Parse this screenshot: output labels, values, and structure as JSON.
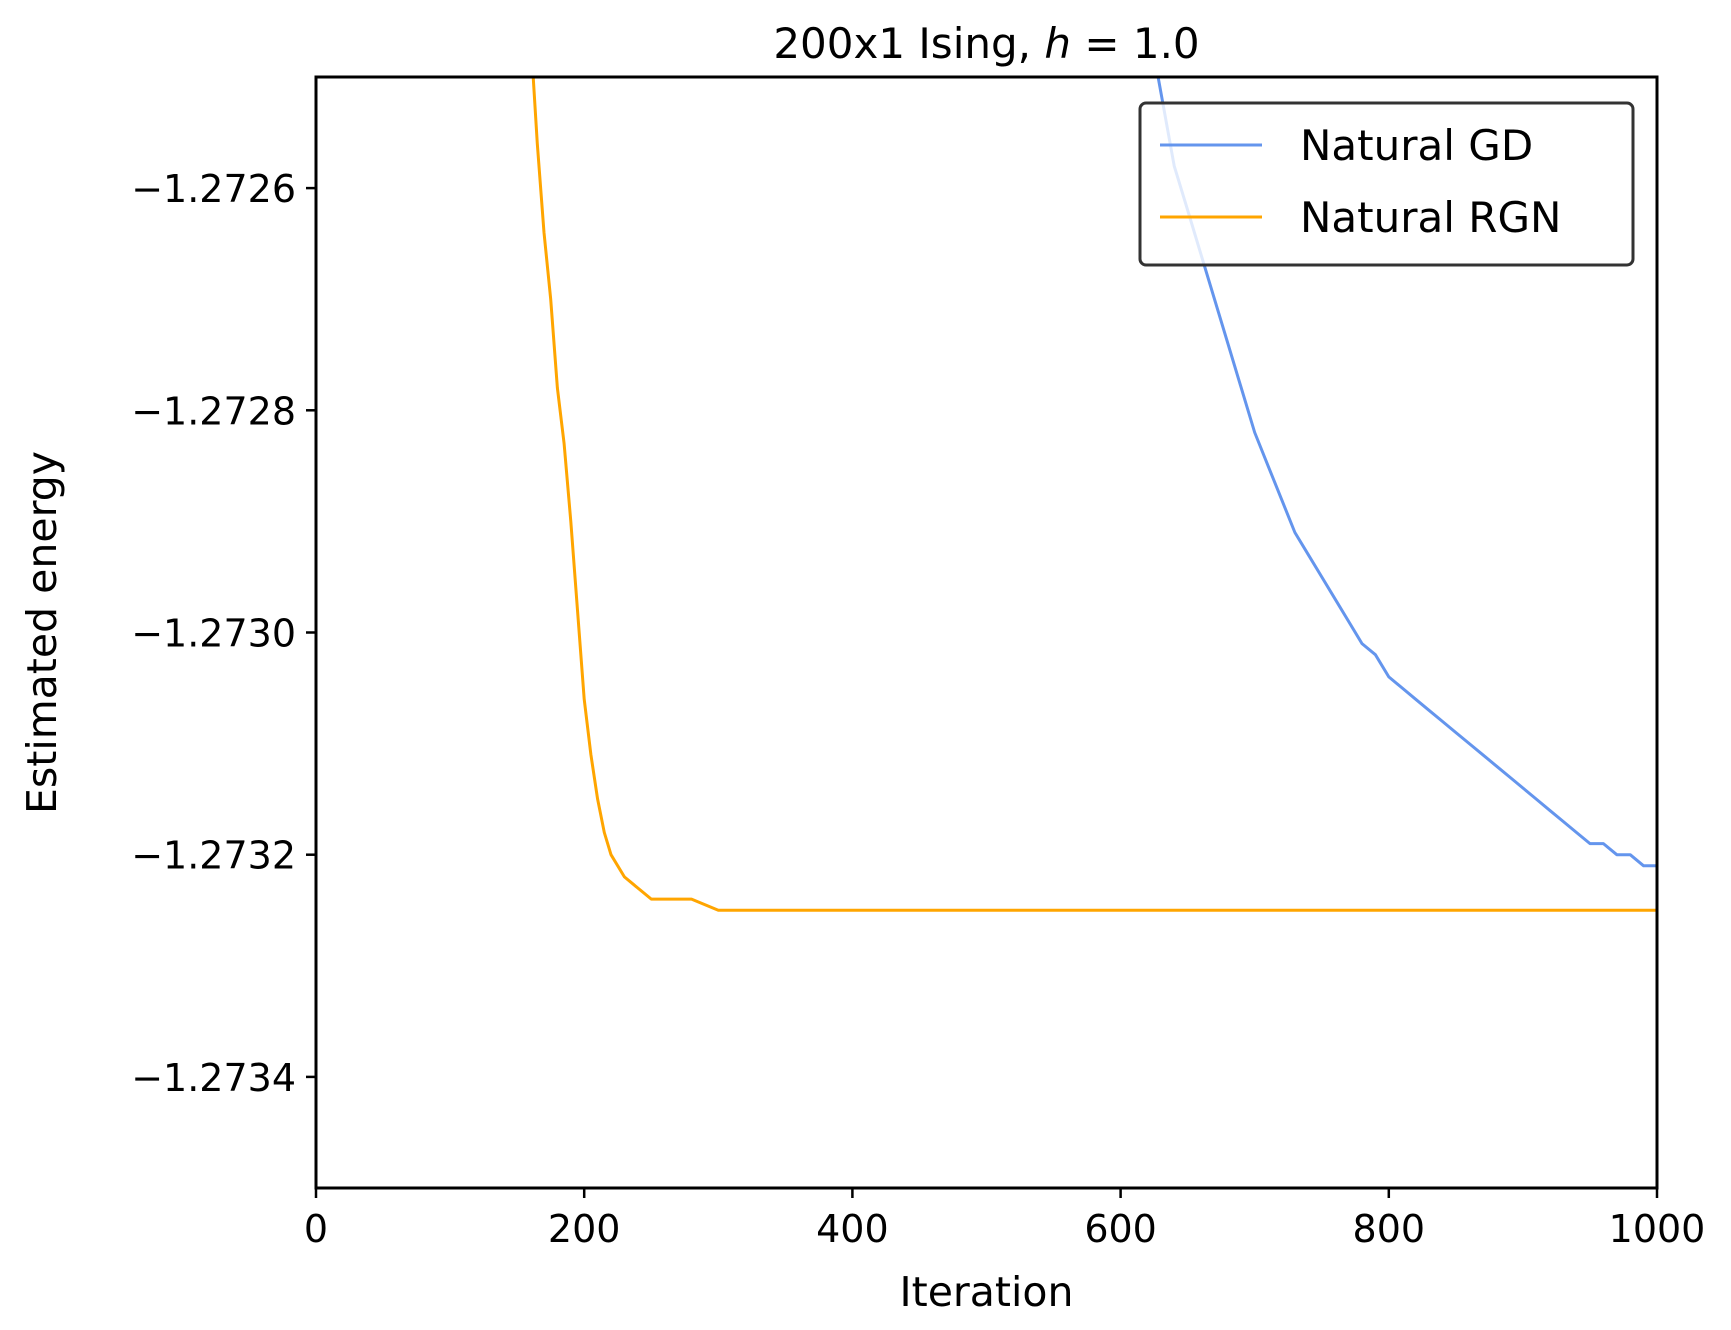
{
  "chart_data": {
    "type": "line",
    "title": "200x1 Ising, h = 1.0",
    "title_parts": {
      "prefix": "200x1 Ising, ",
      "var": "h",
      "eq": " = 1.0"
    },
    "xlabel": "Iteration",
    "ylabel": "Estimated energy",
    "xlim": [
      0,
      1000
    ],
    "ylim": [
      -1.2735,
      -1.2725
    ],
    "xticks": [
      0,
      200,
      400,
      600,
      800,
      1000
    ],
    "xtick_labels": [
      "0",
      "200",
      "400",
      "600",
      "800",
      "1000"
    ],
    "yticks": [
      -1.2726,
      -1.2728,
      -1.273,
      -1.2732,
      -1.2734
    ],
    "ytick_labels": [
      "−1.2726",
      "−1.2728",
      "−1.2730",
      "−1.2732",
      "−1.2734"
    ],
    "grid": false,
    "legend_position": "top-right",
    "series": [
      {
        "name": "Natural GD",
        "color": "#6495ED",
        "x": [
          628,
          640,
          650,
          660,
          670,
          680,
          690,
          700,
          710,
          720,
          730,
          740,
          750,
          760,
          770,
          780,
          790,
          800,
          810,
          820,
          830,
          840,
          850,
          860,
          870,
          880,
          890,
          900,
          910,
          920,
          930,
          940,
          950,
          960,
          970,
          980,
          990,
          1000
        ],
        "y": [
          -1.2725,
          -1.27258,
          -1.27262,
          -1.27266,
          -1.2727,
          -1.27274,
          -1.27278,
          -1.27282,
          -1.27285,
          -1.27288,
          -1.27291,
          -1.27293,
          -1.27295,
          -1.27297,
          -1.27299,
          -1.27301,
          -1.27302,
          -1.27304,
          -1.27305,
          -1.27306,
          -1.27307,
          -1.27308,
          -1.27309,
          -1.2731,
          -1.27311,
          -1.27312,
          -1.27313,
          -1.27314,
          -1.27315,
          -1.27316,
          -1.27317,
          -1.27318,
          -1.27319,
          -1.27319,
          -1.2732,
          -1.2732,
          -1.27321,
          -1.27321
        ]
      },
      {
        "name": "Natural RGN",
        "color": "#FFA500",
        "x": [
          162,
          165,
          170,
          175,
          180,
          185,
          190,
          195,
          200,
          205,
          210,
          215,
          220,
          230,
          240,
          250,
          260,
          280,
          300,
          350,
          400,
          450,
          500,
          550,
          600,
          650,
          700,
          750,
          800,
          850,
          900,
          950,
          1000
        ],
        "y": [
          -1.2725,
          -1.27256,
          -1.27264,
          -1.2727,
          -1.27278,
          -1.27283,
          -1.2729,
          -1.27298,
          -1.27306,
          -1.27311,
          -1.27315,
          -1.27318,
          -1.2732,
          -1.27322,
          -1.27323,
          -1.27324,
          -1.27324,
          -1.27324,
          -1.27325,
          -1.27325,
          -1.27325,
          -1.27325,
          -1.27325,
          -1.27325,
          -1.27325,
          -1.27325,
          -1.27325,
          -1.27325,
          -1.27325,
          -1.27325,
          -1.27325,
          -1.27325,
          -1.27325
        ]
      }
    ]
  }
}
